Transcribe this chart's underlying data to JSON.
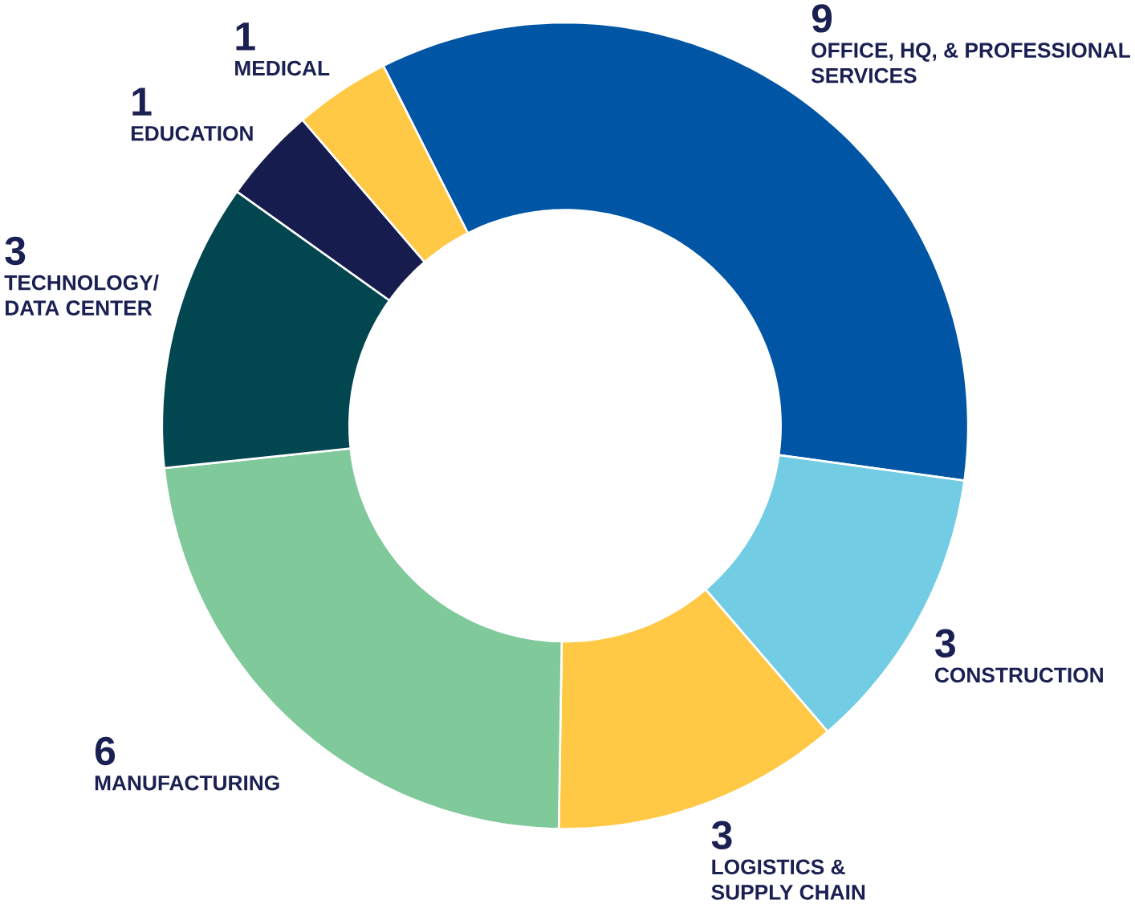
{
  "chart_data": {
    "type": "donut",
    "categories": [
      "OFFICE, HQ, & PROFESSIONAL SERVICES",
      "CONSTRUCTION",
      "LOGISTICS & SUPPLY CHAIN",
      "MANUFACTURING",
      "TECHNOLOGY/ DATA CENTER",
      "EDUCATION",
      "MEDICAL"
    ],
    "values": [
      9,
      3,
      3,
      6,
      3,
      1,
      1
    ],
    "colors": [
      "#0055a5",
      "#72cde4",
      "#ffc845",
      "#7fc99a",
      "#024650",
      "#171c4f",
      "#ffc845"
    ],
    "data_labels": true
  }
}
